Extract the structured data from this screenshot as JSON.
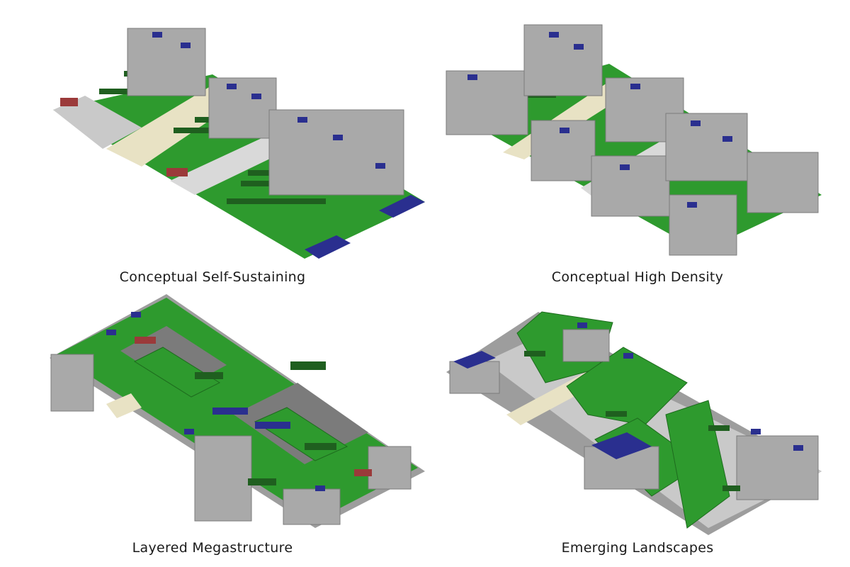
{
  "panels": [
    {
      "caption": "Conceptual Self-Sustaining"
    },
    {
      "caption": "Conceptual High Density"
    },
    {
      "caption": "Layered Megastructure"
    },
    {
      "caption": "Emerging Landscapes"
    }
  ],
  "colors": {
    "grass": "#2e9a2e",
    "grass_dark": "#1e6b1e",
    "tree": "#1f5f1f",
    "tower": "#a9a9a9",
    "tower_dark": "#7b7b7b",
    "solar": "#2a2f8f",
    "plaza": "#e8e2c4",
    "paving": "#d9d9d9",
    "roof_red": "#9b3a3a"
  }
}
